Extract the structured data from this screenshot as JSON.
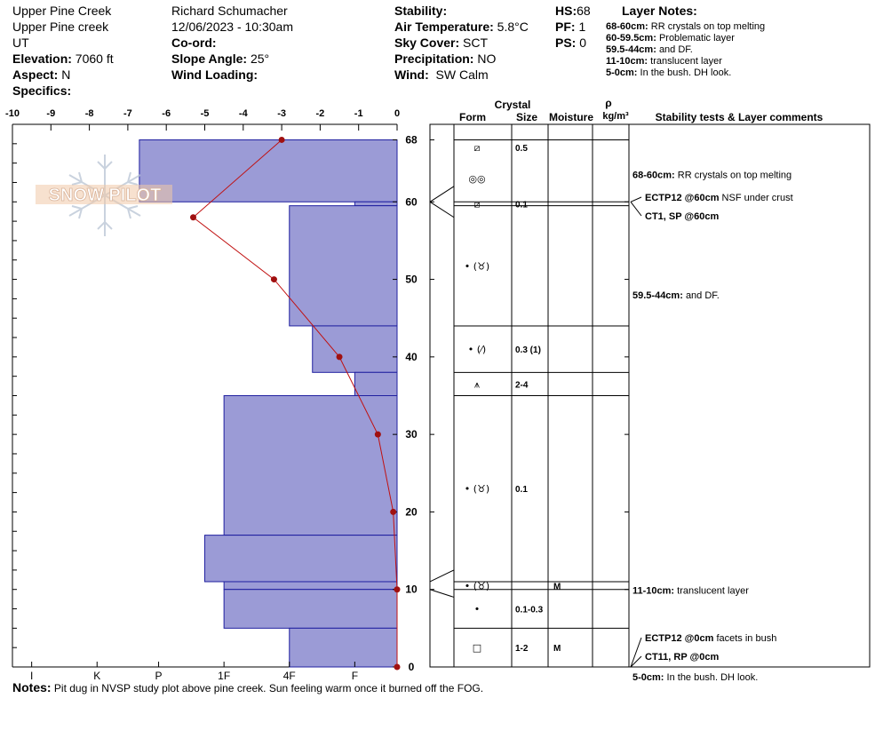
{
  "header": {
    "location": "Upper Pine Creek",
    "sublocation": "Upper Pine creek",
    "state": "UT",
    "elevation_label": "Elevation:",
    "elevation_value": "7060 ft",
    "aspect_label": "Aspect:",
    "aspect_value": "N",
    "specifics_label": "Specifics:",
    "observer": "Richard Schumacher",
    "datetime": "12/06/2023 - 10:30am",
    "coord_label": "Co-ord:",
    "slope_label": "Slope Angle:",
    "slope_value": "25°",
    "wind_loading_label": "Wind Loading:",
    "stability_label": "Stability:",
    "air_temp_label": "Air Temperature:",
    "air_temp_value": "5.8°C",
    "sky_label": "Sky Cover:",
    "sky_value": "SCT",
    "precip_label": "Precipitation:",
    "precip_value": "NO",
    "wind_label": "Wind:",
    "wind_value": "SW Calm",
    "hs_label": "HS:",
    "hs_value": "68",
    "pf_label": "PF:",
    "pf_value": "1",
    "ps_label": "PS:",
    "ps_value": "0"
  },
  "layer_notes": {
    "title": "Layer Notes:",
    "items": [
      {
        "range": "68-60cm:",
        "text": "RR crystals on top melting"
      },
      {
        "range": "60-59.5cm:",
        "text": "Problematic layer"
      },
      {
        "range": "59.5-44cm:",
        "text": "and DF."
      },
      {
        "range": "11-10cm:",
        "text": "translucent layer"
      },
      {
        "range": "5-0cm:",
        "text": "In the bush. DH look."
      }
    ]
  },
  "logo_text": "SNOW PILOT",
  "chart_data": {
    "type": "bar",
    "orientation": "horizontal",
    "y_axis": {
      "min": 0,
      "max": 70,
      "ticks": [
        0,
        10,
        20,
        30,
        40,
        50,
        60,
        68
      ],
      "label": ""
    },
    "top_axis": {
      "min": -10,
      "max": 0,
      "ticks": [
        -10,
        -9,
        -8,
        -7,
        -6,
        -5,
        -4,
        -3,
        -2,
        -1,
        0
      ]
    },
    "hardness_scale": [
      {
        "label": "I",
        "value": 9.5
      },
      {
        "label": "K",
        "value": 7.8
      },
      {
        "label": "P",
        "value": 6.2
      },
      {
        "label": "1F",
        "value": 4.5
      },
      {
        "label": "4F",
        "value": 2.8
      },
      {
        "label": "F",
        "value": 1.1
      }
    ],
    "layers": [
      {
        "top": 68,
        "bottom": 60,
        "hardness": 6.7
      },
      {
        "top": 60,
        "bottom": 59.5,
        "hardness": 1.1
      },
      {
        "top": 59.5,
        "bottom": 44,
        "hardness": 2.8
      },
      {
        "top": 44,
        "bottom": 38,
        "hardness": 2.2
      },
      {
        "top": 38,
        "bottom": 35,
        "hardness": 1.1
      },
      {
        "top": 35,
        "bottom": 17,
        "hardness": 4.5
      },
      {
        "top": 17,
        "bottom": 11,
        "hardness": 5.0
      },
      {
        "top": 11,
        "bottom": 10,
        "hardness": 4.5
      },
      {
        "top": 10,
        "bottom": 5,
        "hardness": 4.5
      },
      {
        "top": 5,
        "bottom": 0,
        "hardness": 2.8
      }
    ],
    "temperature_profile": [
      {
        "depth": 68,
        "temp": -3.0
      },
      {
        "depth": 58,
        "temp": -5.3
      },
      {
        "depth": 50,
        "temp": -3.2
      },
      {
        "depth": 40,
        "temp": -1.5
      },
      {
        "depth": 30,
        "temp": -0.5
      },
      {
        "depth": 20,
        "temp": -0.1
      },
      {
        "depth": 10,
        "temp": 0
      },
      {
        "depth": 0,
        "temp": 0
      }
    ],
    "columns": {
      "crystal": "Crystal",
      "form": "Form",
      "size": "Size",
      "moisture": "Moisture",
      "rho": "ρ",
      "density_unit": "kg/m³",
      "comments": "Stability tests & Layer comments"
    },
    "strat_rows": [
      {
        "top": 68,
        "bottom": 66,
        "form": "⧄",
        "size": "0.5",
        "moisture": "",
        "sep_top": true
      },
      {
        "top": 66,
        "bottom": 60,
        "form": "◎◎",
        "size": "",
        "moisture": "",
        "sep_top": false
      },
      {
        "top": 60,
        "bottom": 59.5,
        "form": "⧄",
        "size": "0.1",
        "moisture": "",
        "sep_top": true
      },
      {
        "top": 59.5,
        "bottom": 44,
        "form": "• (♉)",
        "size": "",
        "moisture": "",
        "sep_top": true
      },
      {
        "top": 44,
        "bottom": 38,
        "form": "• (⁄)",
        "size": "0.3 (1)",
        "moisture": "",
        "sep_top": true
      },
      {
        "top": 38,
        "bottom": 35,
        "form": "⩚",
        "size": "2-4",
        "moisture": "",
        "sep_top": true
      },
      {
        "top": 35,
        "bottom": 11,
        "form": "• (♉)",
        "size": "0.1",
        "moisture": "",
        "sep_top": true
      },
      {
        "top": 11,
        "bottom": 10,
        "form": "• (♉)",
        "size": "",
        "moisture": "M",
        "sep_top": true
      },
      {
        "top": 10,
        "bottom": 5,
        "form": "•",
        "size": "0.1-0.3",
        "moisture": "",
        "sep_top": true
      },
      {
        "top": 5,
        "bottom": 0,
        "form": "□",
        "size": "1-2",
        "moisture": "M",
        "sep_top": true
      }
    ],
    "comments": [
      {
        "depth": 63.5,
        "bold": "68-60cm:",
        "text": "RR crystals on top melting"
      },
      {
        "depth": 48,
        "bold": "59.5-44cm:",
        "text": "and DF."
      },
      {
        "depth": 9.9,
        "bold": "11-10cm:",
        "text": "translucent layer"
      }
    ],
    "tests": [
      {
        "depth": 60,
        "bold": "ECTP12 @60cm",
        "text": "NSF under crust"
      },
      {
        "depth": 60,
        "bold": "CT1, SP @60cm",
        "text": ""
      },
      {
        "depth": 0,
        "bold": "ECTP12 @0cm",
        "text": "facets in bush"
      },
      {
        "depth": 0,
        "bold": "CT11, RP @0cm",
        "text": ""
      }
    ],
    "bottom_comment": {
      "bold": "5-0cm:",
      "text": "In the bush. DH look."
    }
  },
  "notes": {
    "label": "Notes:",
    "text": "Pit dug in NVSP study plot above pine creek. Sun feeling warm once it burned off the FOG."
  },
  "colors": {
    "bar_fill": "#9b9bd6",
    "bar_stroke": "#2020a0",
    "temp_line": "#c01010"
  }
}
